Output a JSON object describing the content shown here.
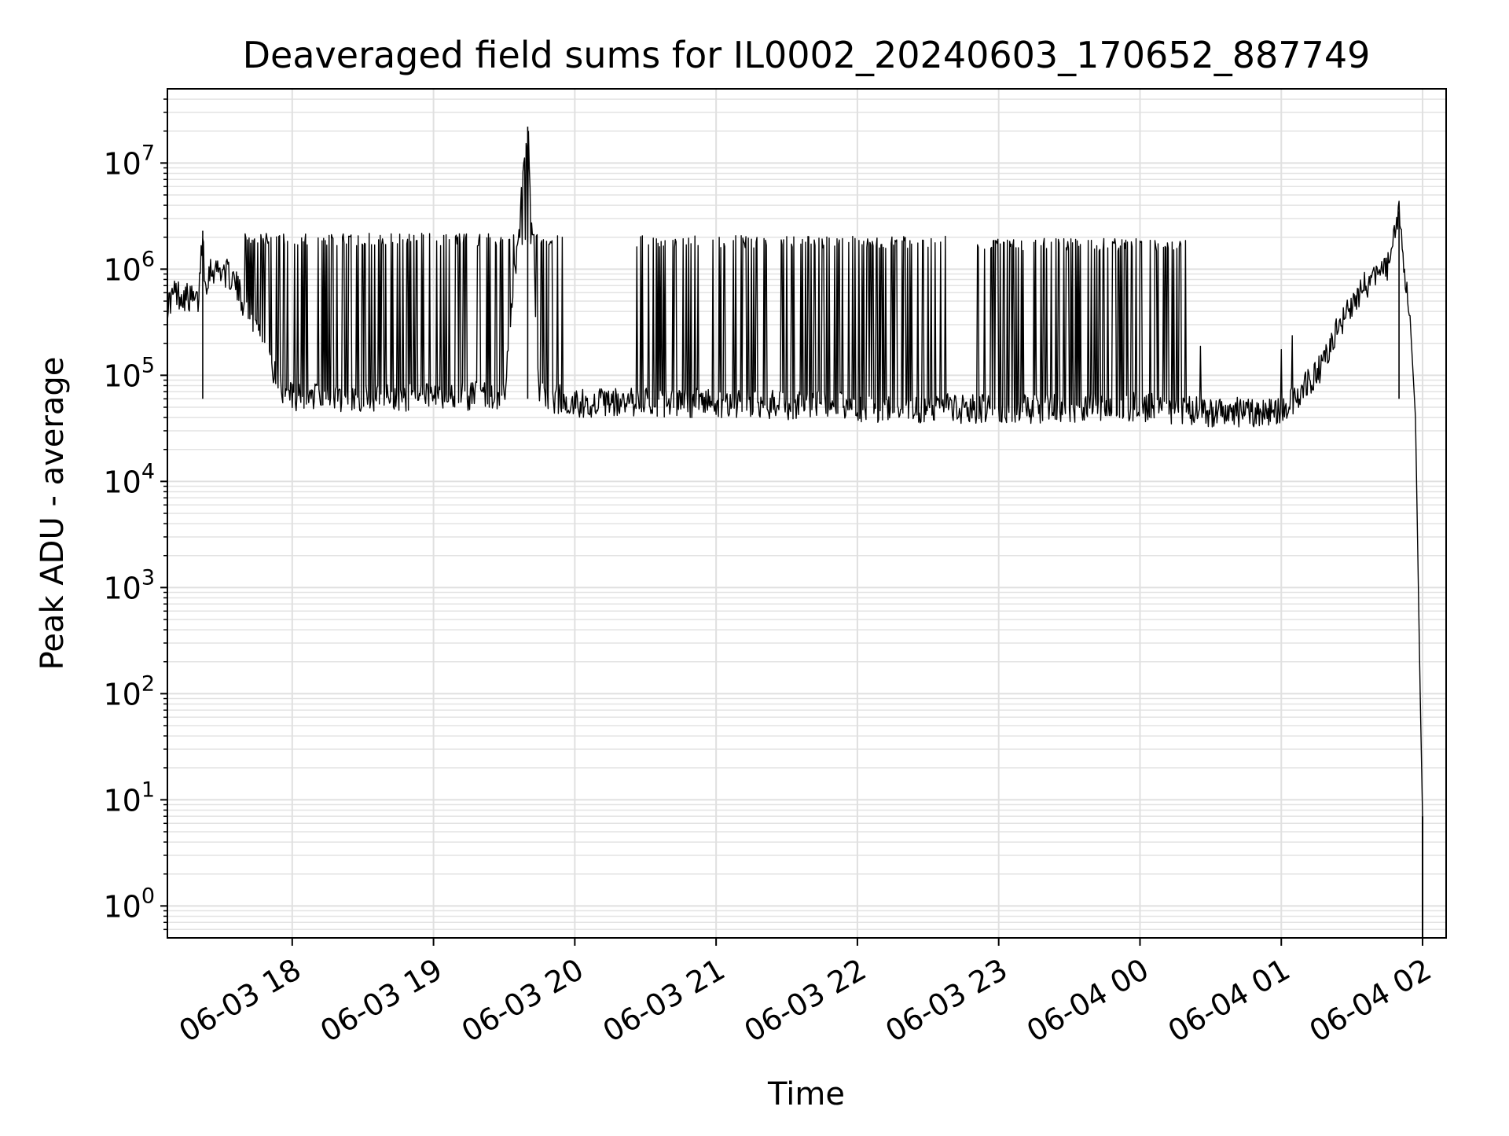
{
  "chart_data": {
    "type": "line",
    "title": "Deaveraged field sums for IL0002_20240603_170652_887749",
    "xlabel": "Time",
    "ylabel": "Peak ADU - average",
    "yscale": "log",
    "ylim": [
      0.5,
      50000000
    ],
    "xlim": [
      "2024-06-03 17:07",
      "2024-06-04 02:10"
    ],
    "grid": true,
    "x_ticks": [
      {
        "value": "2024-06-03 18:00",
        "label": "06-03 18"
      },
      {
        "value": "2024-06-03 19:00",
        "label": "06-03 19"
      },
      {
        "value": "2024-06-03 20:00",
        "label": "06-03 20"
      },
      {
        "value": "2024-06-03 21:00",
        "label": "06-03 21"
      },
      {
        "value": "2024-06-03 22:00",
        "label": "06-03 22"
      },
      {
        "value": "2024-06-03 23:00",
        "label": "06-03 23"
      },
      {
        "value": "2024-06-04 00:00",
        "label": "06-04 00"
      },
      {
        "value": "2024-06-04 01:00",
        "label": "06-04 01"
      },
      {
        "value": "2024-06-04 02:00",
        "label": "06-04 02"
      }
    ],
    "y_ticks": [
      {
        "value": 1,
        "base": "10",
        "exp": "0"
      },
      {
        "value": 10,
        "base": "10",
        "exp": "1"
      },
      {
        "value": 100,
        "base": "10",
        "exp": "2"
      },
      {
        "value": 1000,
        "base": "10",
        "exp": "3"
      },
      {
        "value": 10000,
        "base": "10",
        "exp": "4"
      },
      {
        "value": 100000,
        "base": "10",
        "exp": "5"
      },
      {
        "value": 1000000,
        "base": "10",
        "exp": "6"
      },
      {
        "value": 10000000,
        "base": "10",
        "exp": "7"
      }
    ],
    "series": [
      {
        "color": "#000000",
        "points": [
          {
            "x": "2024-06-03 17:07",
            "y": 450000
          },
          {
            "x": "2024-06-03 17:10",
            "y": 600000
          },
          {
            "x": "2024-06-03 17:15",
            "y": 550000
          },
          {
            "x": "2024-06-03 17:20",
            "y": 480000
          },
          {
            "x": "2024-06-03 17:22",
            "y": 2300000
          },
          {
            "x": "2024-06-03 17:23",
            "y": 700000
          },
          {
            "x": "2024-06-03 17:25",
            "y": 1000000
          },
          {
            "x": "2024-06-03 17:30",
            "y": 1000000
          },
          {
            "x": "2024-06-03 17:35",
            "y": 800000
          },
          {
            "x": "2024-06-03 17:40",
            "y": 450000
          },
          {
            "x": "2024-06-03 17:45",
            "y": 300000
          },
          {
            "x": "2024-06-03 17:50",
            "y": 150000
          },
          {
            "x": "2024-06-03 17:55",
            "y": 80000
          },
          {
            "x": "2024-06-03 18:00",
            "y": 60000
          },
          {
            "x": "2024-06-03 18:30",
            "y": 60000
          },
          {
            "x": "2024-06-03 19:00",
            "y": 62000
          },
          {
            "x": "2024-06-03 19:30",
            "y": 65000
          },
          {
            "x": "2024-06-03 19:40",
            "y": 22000000
          },
          {
            "x": "2024-06-03 19:45",
            "y": 65000
          },
          {
            "x": "2024-06-03 20:00",
            "y": 55000
          },
          {
            "x": "2024-06-03 20:30",
            "y": 55000
          },
          {
            "x": "2024-06-03 21:00",
            "y": 55000
          },
          {
            "x": "2024-06-03 22:00",
            "y": 50000
          },
          {
            "x": "2024-06-03 23:00",
            "y": 48000
          },
          {
            "x": "2024-06-04 00:00",
            "y": 50000
          },
          {
            "x": "2024-06-04 00:30",
            "y": 45000
          },
          {
            "x": "2024-06-04 01:00",
            "y": 45000
          },
          {
            "x": "2024-06-04 01:15",
            "y": 100000
          },
          {
            "x": "2024-06-04 01:25",
            "y": 300000
          },
          {
            "x": "2024-06-04 01:35",
            "y": 700000
          },
          {
            "x": "2024-06-04 01:45",
            "y": 1000000
          },
          {
            "x": "2024-06-04 01:50",
            "y": 3500000
          },
          {
            "x": "2024-06-04 01:52",
            "y": 1000000
          },
          {
            "x": "2024-06-04 01:55",
            "y": 300000
          },
          {
            "x": "2024-06-04 01:57",
            "y": 40000
          },
          {
            "x": "2024-06-04 01:59",
            "y": 100
          },
          {
            "x": "2024-06-04 02:00",
            "y": 7
          },
          {
            "x": "2024-06-04 02:00",
            "y": 0.5
          }
        ]
      }
    ],
    "spike_regions": [
      {
        "x_start": "2024-06-03 17:40",
        "x_end": "2024-06-03 19:55",
        "high": 1900000
      },
      {
        "x_start": "2024-06-03 20:25",
        "x_end": "2024-06-03 22:40",
        "high": 1800000
      },
      {
        "x_start": "2024-06-03 22:50",
        "x_end": "2024-06-04 00:20",
        "high": 1700000
      }
    ]
  }
}
